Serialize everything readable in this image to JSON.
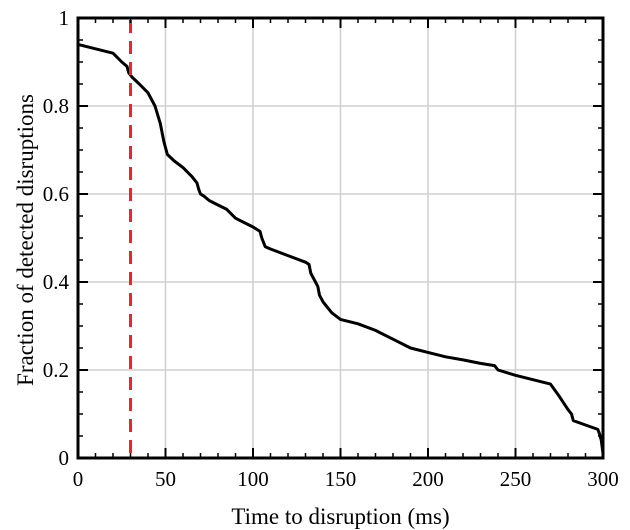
{
  "chart_data": {
    "type": "line",
    "xlabel": "Time to  disruption (ms)",
    "ylabel": "Fraction of detected disruptions",
    "xlim": [
      0,
      300
    ],
    "ylim": [
      0,
      1
    ],
    "xticks": [
      0,
      50,
      100,
      150,
      200,
      250,
      300
    ],
    "yticks": [
      0,
      0.2,
      0.4,
      0.6,
      0.8,
      1
    ],
    "xtick_labels": [
      "0",
      "50",
      "100",
      "150",
      "200",
      "250",
      "300"
    ],
    "ytick_labels": [
      "0",
      "0.2",
      "0.4",
      "0.6",
      "0.8",
      "1"
    ],
    "grid": true,
    "series": [
      {
        "color": "#000000",
        "x": [
          0,
          10,
          20,
          25,
          28,
          29,
          31,
          35,
          40,
          44,
          47,
          49,
          51,
          55,
          60,
          65,
          68,
          69,
          70,
          72,
          75,
          80,
          85,
          90,
          95,
          100,
          104,
          105,
          107,
          110,
          120,
          130,
          132,
          133,
          135,
          137,
          138,
          140,
          145,
          150,
          160,
          170,
          180,
          190,
          200,
          210,
          220,
          230,
          238,
          240,
          250,
          260,
          270,
          275,
          280,
          282,
          283,
          290,
          297,
          298,
          299,
          300
        ],
        "y": [
          0.94,
          0.93,
          0.92,
          0.9,
          0.89,
          0.875,
          0.865,
          0.85,
          0.83,
          0.8,
          0.76,
          0.72,
          0.69,
          0.675,
          0.66,
          0.64,
          0.625,
          0.61,
          0.6,
          0.595,
          0.585,
          0.575,
          0.565,
          0.545,
          0.535,
          0.525,
          0.515,
          0.5,
          0.48,
          0.475,
          0.46,
          0.445,
          0.44,
          0.42,
          0.405,
          0.39,
          0.37,
          0.355,
          0.33,
          0.315,
          0.305,
          0.29,
          0.27,
          0.25,
          0.24,
          0.23,
          0.223,
          0.215,
          0.21,
          0.2,
          0.188,
          0.178,
          0.168,
          0.14,
          0.11,
          0.1,
          0.085,
          0.075,
          0.065,
          0.055,
          0.04,
          0.01
        ]
      }
    ],
    "vline": {
      "x": 30,
      "color": "#e8262b",
      "style": "dashed"
    }
  }
}
